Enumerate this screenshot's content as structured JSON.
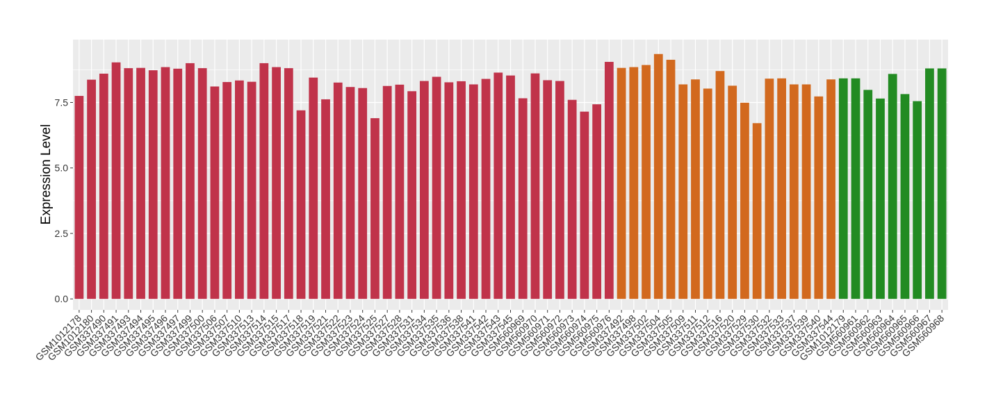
{
  "chart_data": {
    "type": "bar",
    "title": "",
    "xlabel": "",
    "ylabel": "Expression Level",
    "ylim": [
      -0.42,
      9.9
    ],
    "yticks": [
      0.0,
      2.5,
      5.0,
      7.5
    ],
    "ytick_labels": [
      "0.0",
      "2.5",
      "5.0",
      "7.5"
    ],
    "grid": true,
    "legend": "none",
    "colors": {
      "panel": "#ebebeb",
      "grid": "#ffffff",
      "tick": "#333333"
    },
    "categories": [
      "GSM1012178",
      "GSM1012180",
      "GSM337490",
      "GSM337491",
      "GSM337493",
      "GSM337494",
      "GSM337495",
      "GSM337496",
      "GSM337497",
      "GSM337499",
      "GSM337500",
      "GSM337506",
      "GSM337507",
      "GSM337510",
      "GSM337513",
      "GSM337514",
      "GSM337515",
      "GSM337517",
      "GSM337518",
      "GSM337519",
      "GSM337521",
      "GSM337522",
      "GSM337523",
      "GSM337524",
      "GSM337525",
      "GSM337527",
      "GSM337528",
      "GSM337531",
      "GSM337534",
      "GSM337535",
      "GSM337536",
      "GSM337538",
      "GSM337541",
      "GSM337542",
      "GSM337543",
      "GSM337545",
      "GSM560969",
      "GSM560970",
      "GSM560971",
      "GSM560972",
      "GSM560973",
      "GSM560974",
      "GSM560975",
      "GSM560976",
      "GSM337492",
      "GSM337498",
      "GSM337502",
      "GSM337504",
      "GSM337505",
      "GSM337509",
      "GSM337511",
      "GSM337512",
      "GSM337516",
      "GSM337520",
      "GSM337529",
      "GSM337530",
      "GSM337532",
      "GSM337533",
      "GSM337537",
      "GSM337539",
      "GSM337540",
      "GSM337544",
      "GSM1012179",
      "GSM560961",
      "GSM560962",
      "GSM560963",
      "GSM560964",
      "GSM560965",
      "GSM560966",
      "GSM560967",
      "GSM560968"
    ],
    "values": [
      7.75,
      8.37,
      8.6,
      9.03,
      8.81,
      8.82,
      8.73,
      8.85,
      8.79,
      9.0,
      8.81,
      8.11,
      8.28,
      8.34,
      8.29,
      9.0,
      8.85,
      8.81,
      7.2,
      8.45,
      7.62,
      8.26,
      8.09,
      8.05,
      6.9,
      8.13,
      8.18,
      7.93,
      8.32,
      8.48,
      8.27,
      8.31,
      8.19,
      8.4,
      8.64,
      8.53,
      7.66,
      8.61,
      8.35,
      8.32,
      7.6,
      7.15,
      7.43,
      9.05,
      8.82,
      8.85,
      8.93,
      9.35,
      9.13,
      8.19,
      8.38,
      8.03,
      8.7,
      8.14,
      7.49,
      6.71,
      8.41,
      8.42,
      8.19,
      8.19,
      7.73,
      8.38,
      8.42,
      8.42,
      7.98,
      7.65,
      8.59,
      7.82,
      7.55,
      8.8,
      8.8
    ],
    "bar_colors": [
      "#c0334a",
      "#c0334a",
      "#c0334a",
      "#c0334a",
      "#c0334a",
      "#c0334a",
      "#c0334a",
      "#c0334a",
      "#c0334a",
      "#c0334a",
      "#c0334a",
      "#c0334a",
      "#c0334a",
      "#c0334a",
      "#c0334a",
      "#c0334a",
      "#c0334a",
      "#c0334a",
      "#c0334a",
      "#c0334a",
      "#c0334a",
      "#c0334a",
      "#c0334a",
      "#c0334a",
      "#c0334a",
      "#c0334a",
      "#c0334a",
      "#c0334a",
      "#c0334a",
      "#c0334a",
      "#c0334a",
      "#c0334a",
      "#c0334a",
      "#c0334a",
      "#c0334a",
      "#c0334a",
      "#c0334a",
      "#c0334a",
      "#c0334a",
      "#c0334a",
      "#c0334a",
      "#c0334a",
      "#c0334a",
      "#c0334a",
      "#d2691e",
      "#d2691e",
      "#d2691e",
      "#d2691e",
      "#d2691e",
      "#d2691e",
      "#d2691e",
      "#d2691e",
      "#d2691e",
      "#d2691e",
      "#d2691e",
      "#d2691e",
      "#d2691e",
      "#d2691e",
      "#d2691e",
      "#d2691e",
      "#d2691e",
      "#d2691e",
      "#228b22",
      "#228b22",
      "#228b22",
      "#228b22",
      "#228b22",
      "#228b22",
      "#228b22",
      "#228b22",
      "#228b22"
    ]
  }
}
